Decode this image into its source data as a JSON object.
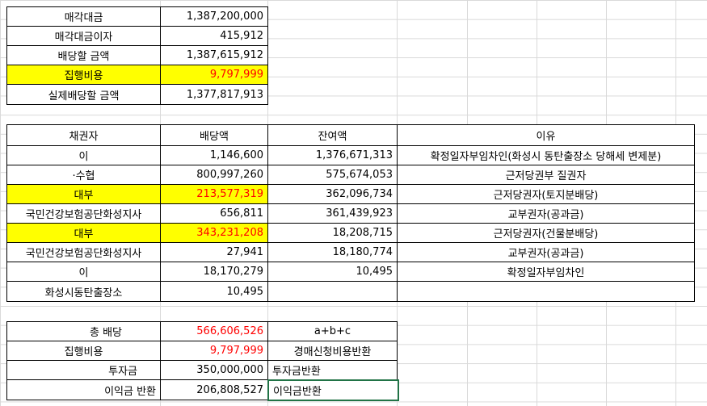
{
  "summary": [
    {
      "label": "매각대금",
      "value": "1,387,200,000",
      "highlight": false
    },
    {
      "label": "매각대금이자",
      "value": "415,912",
      "highlight": false
    },
    {
      "label": "배당할 금액",
      "value": "1,387,615,912",
      "highlight": false
    },
    {
      "label": "집행비용",
      "value": "9,797,999",
      "highlight": true
    },
    {
      "label": "실제배당할 금액",
      "value": "1,377,817,913",
      "highlight": false
    }
  ],
  "distribution": {
    "headers": [
      "채권자",
      "배당액",
      "잔여액",
      "이유"
    ],
    "rows": [
      {
        "creditor": "이",
        "amount": "1,146,600",
        "remaining": "1,376,671,313",
        "reason": "확정일자부임차인(화성시 동탄출장소 당해세 변제분)",
        "highlight": false
      },
      {
        "creditor": "·수협",
        "amount": "800,997,260",
        "remaining": "575,674,053",
        "reason": "근저당권부 질권자",
        "highlight": false
      },
      {
        "creditor": "대부",
        "amount": "213,577,319",
        "remaining": "362,096,734",
        "reason": "근저당권자(토지분배당)",
        "highlight": true
      },
      {
        "creditor": "국민건강보험공단화성지사",
        "amount": "656,811",
        "remaining": "361,439,923",
        "reason": "교부권자(공과금)",
        "highlight": false
      },
      {
        "creditor": "대부",
        "amount": "343,231,208",
        "remaining": "18,208,715",
        "reason": "근저당권자(건물분배당)",
        "highlight": true
      },
      {
        "creditor": "국민건강보험공단화성지사",
        "amount": "27,941",
        "remaining": "18,180,774",
        "reason": "교부권자(공과금)",
        "highlight": false
      },
      {
        "creditor": "이",
        "amount": "18,170,279",
        "remaining": "10,495",
        "reason": "확정일자부임차인",
        "highlight": false
      },
      {
        "creditor": "화성시동탄출장소",
        "amount": "10,495",
        "remaining": "",
        "reason": "",
        "highlight": false
      }
    ]
  },
  "totals": [
    {
      "label": "총 배당",
      "value": "566,606,526",
      "note": "a+b+c",
      "red": true
    },
    {
      "label": "집행비용",
      "value": "9,797,999",
      "note": "경매신청비용반환",
      "red": true
    },
    {
      "label": "투자금",
      "value": "350,000,000",
      "note": "투자금반환",
      "red": false
    },
    {
      "label": "이익금 반환",
      "value": "206,808,527",
      "note": "이익금반환",
      "red": false
    }
  ]
}
